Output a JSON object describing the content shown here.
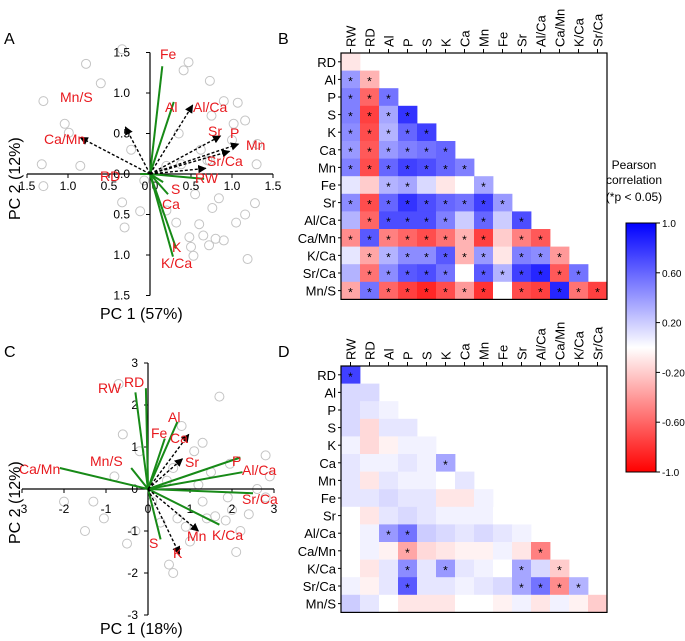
{
  "figure": {
    "panel_labels": [
      "A",
      "B",
      "C",
      "D"
    ],
    "legend": {
      "title_line1": "Pearson",
      "title_line2": "correlation",
      "title_line3": "(*p < 0.05)",
      "ticks": [
        "1.0",
        "0.60",
        "0.20",
        "-0.20",
        "-0.60",
        "-1.0"
      ],
      "tick_values": [
        1.0,
        0.6,
        0.2,
        -0.2,
        -0.6,
        -1.0
      ]
    }
  },
  "chart_data": [
    {
      "type": "scatter",
      "panel": "A",
      "subtype": "pca-biplot",
      "xlabel": "PC 1 (57%)",
      "ylabel": "PC 2 (12%)",
      "xlim": [
        -1.5,
        1.5
      ],
      "ylim": [
        -1.5,
        1.5
      ],
      "xticks": [
        "1.5",
        "1.0",
        "0.5",
        "0.0",
        "0.5",
        "1.0",
        "1.5"
      ],
      "xtick_values": [
        -1.5,
        -1.0,
        -0.5,
        0.0,
        0.5,
        1.0,
        1.5
      ],
      "yticks": [
        "1.5",
        "1.0",
        "0.5",
        "0.0",
        "0.5",
        "1.0",
        "1.5"
      ],
      "ytick_values": [
        1.5,
        1.0,
        0.5,
        0.0,
        -0.5,
        -1.0,
        -1.5
      ],
      "solid_loadings": [
        {
          "name": "Fe",
          "x": 0.15,
          "y": 1.33
        },
        {
          "name": "Al",
          "x": 0.29,
          "y": 0.89
        },
        {
          "name": "RD",
          "x": -0.12,
          "y": 0.0
        },
        {
          "name": "S",
          "x": 0.16,
          "y": -0.1
        },
        {
          "name": "Ca",
          "x": 0.22,
          "y": -0.25
        },
        {
          "name": "RW",
          "x": 0.66,
          "y": -0.06
        },
        {
          "name": "K",
          "x": 0.32,
          "y": -0.92
        },
        {
          "name": "K/Ca",
          "x": 0.28,
          "y": -1.02
        }
      ],
      "dashed_loadings": [
        {
          "name": "Mn/S",
          "x": -0.3,
          "y": 0.58
        },
        {
          "name": "Ca/Mn",
          "x": -0.85,
          "y": 0.45
        },
        {
          "name": "Al/Ca",
          "x": 0.52,
          "y": 0.85
        },
        {
          "name": "Sr",
          "x": 0.86,
          "y": 0.47
        },
        {
          "name": "P",
          "x": 1.08,
          "y": 0.37
        },
        {
          "name": "Mn",
          "x": 0.97,
          "y": 0.28
        },
        {
          "name": "Sr/Ca",
          "x": 0.68,
          "y": 0.07
        }
      ],
      "label_texts": [
        "Fe",
        "Al",
        "Al/Ca",
        "Mn/S",
        "Sr",
        "P",
        "Mn",
        "Ca/Mn",
        "Sr/Ca",
        "RD",
        "S",
        "RW",
        "Ca",
        "K",
        "K/Ca"
      ],
      "scores": [
        [
          -1.3,
          0.9
        ],
        [
          -1.32,
          0.12
        ],
        [
          -1.3,
          -0.15
        ],
        [
          -1.04,
          0.62
        ],
        [
          -0.99,
          0.51
        ],
        [
          -0.78,
          1.36
        ],
        [
          -0.6,
          1.12
        ],
        [
          -0.34,
          -0.35
        ],
        [
          -0.34,
          1.54
        ],
        [
          -0.23,
          0.3
        ],
        [
          -0.12,
          -0.46
        ],
        [
          -0.31,
          -0.66
        ],
        [
          0.41,
          1.28
        ],
        [
          0.47,
          1.38
        ],
        [
          0.48,
          -0.78
        ],
        [
          0.5,
          -0.9
        ],
        [
          0.53,
          -1.01
        ],
        [
          0.2,
          -0.45
        ],
        [
          0.32,
          -0.6
        ],
        [
          0.6,
          -0.62
        ],
        [
          0.65,
          -0.76
        ],
        [
          0.72,
          -0.88
        ],
        [
          0.7,
          0.17
        ],
        [
          0.73,
          0.16
        ],
        [
          0.73,
          1.15
        ],
        [
          0.75,
          0.72
        ],
        [
          0.84,
          -0.3
        ],
        [
          0.76,
          -0.42
        ],
        [
          0.8,
          -0.8
        ],
        [
          0.9,
          -0.82
        ],
        [
          1.0,
          0.42
        ],
        [
          1.02,
          0.62
        ],
        [
          1.07,
          0.88
        ],
        [
          1.16,
          0.66
        ],
        [
          1.19,
          -1.05
        ],
        [
          1.31,
          0.37
        ],
        [
          1.3,
          0.12
        ],
        [
          1.28,
          -0.36
        ],
        [
          1.16,
          -0.5
        ],
        [
          -0.85,
          0.1
        ],
        [
          0.62,
          0.3
        ],
        [
          0.9,
          0.9
        ],
        [
          0.35,
          0.5
        ],
        [
          1.05,
          -0.6
        ],
        [
          -0.07,
          -0.08
        ],
        [
          0.2,
          0.1
        ],
        [
          0.55,
          -0.25
        ],
        [
          0.38,
          0.12
        ]
      ]
    },
    {
      "type": "heatmap",
      "panel": "B",
      "legend_title": "Pearson correlation (*p < 0.05)",
      "columns": [
        "RW",
        "RD",
        "Al",
        "P",
        "S",
        "K",
        "Ca",
        "Mn",
        "Fe",
        "Sr",
        "Al/Ca",
        "Ca/Mn",
        "K/Ca",
        "Sr/Ca"
      ],
      "rows": [
        "RD",
        "Al",
        "P",
        "S",
        "K",
        "Ca",
        "Mn",
        "Fe",
        "Sr",
        "Al/Ca",
        "Ca/Mn",
        "K/Ca",
        "Sr/Ca",
        "Mn/S"
      ],
      "values": [
        [
          -0.1
        ],
        [
          0.4,
          -0.3
        ],
        [
          0.5,
          -0.6,
          0.55
        ],
        [
          0.5,
          -0.75,
          0.35,
          0.8
        ],
        [
          0.45,
          -0.7,
          0.3,
          0.6,
          0.75
        ],
        [
          0.4,
          -0.65,
          0.4,
          0.5,
          0.55,
          0.6
        ],
        [
          0.5,
          -0.7,
          0.6,
          0.75,
          0.7,
          0.6,
          0.5
        ],
        [
          0.1,
          -0.2,
          0.3,
          0.35,
          0.15,
          -0.1,
          0.0,
          0.35
        ],
        [
          0.45,
          -0.7,
          0.6,
          0.8,
          0.7,
          0.6,
          0.55,
          0.75,
          0.4
        ],
        [
          0.3,
          -0.6,
          0.7,
          0.7,
          0.7,
          0.5,
          0.2,
          0.6,
          0.2,
          0.7
        ],
        [
          -0.45,
          0.65,
          -0.5,
          -0.6,
          -0.7,
          -0.55,
          -0.3,
          -0.75,
          -0.2,
          -0.5,
          -0.65
        ],
        [
          0.1,
          -0.35,
          0.3,
          0.45,
          0.45,
          0.65,
          -0.3,
          0.4,
          -0.1,
          0.5,
          0.45,
          -0.4
        ],
        [
          0.3,
          -0.55,
          0.45,
          0.65,
          0.7,
          0.55,
          0.0,
          0.65,
          0.3,
          0.75,
          0.85,
          -0.65,
          0.55
        ],
        [
          -0.35,
          0.55,
          -0.6,
          -0.75,
          -0.85,
          -0.7,
          -0.4,
          -0.8,
          0.0,
          -0.7,
          -0.75,
          0.85,
          -0.55,
          -0.75
        ]
      ],
      "significant": [
        [
          false
        ],
        [
          true,
          true
        ],
        [
          true,
          true,
          true
        ],
        [
          true,
          true,
          true,
          true
        ],
        [
          true,
          true,
          true,
          true,
          true
        ],
        [
          true,
          true,
          true,
          true,
          true,
          true
        ],
        [
          true,
          true,
          true,
          true,
          true,
          true,
          true
        ],
        [
          false,
          false,
          true,
          true,
          false,
          false,
          false,
          true
        ],
        [
          true,
          true,
          true,
          true,
          true,
          true,
          true,
          true,
          true
        ],
        [
          false,
          true,
          true,
          true,
          true,
          true,
          false,
          true,
          false,
          true
        ],
        [
          true,
          true,
          true,
          true,
          true,
          true,
          true,
          true,
          false,
          true,
          true
        ],
        [
          false,
          true,
          true,
          true,
          true,
          true,
          true,
          true,
          false,
          true,
          true,
          true
        ],
        [
          false,
          true,
          true,
          true,
          true,
          true,
          false,
          true,
          true,
          true,
          true,
          true,
          true
        ],
        [
          true,
          true,
          true,
          true,
          true,
          true,
          true,
          true,
          false,
          true,
          true,
          true,
          true,
          true
        ]
      ]
    },
    {
      "type": "scatter",
      "panel": "C",
      "subtype": "pca-biplot",
      "xlabel": "PC 1 (18%)",
      "ylabel": "PC 2 (12%)",
      "xlim": [
        -3,
        3
      ],
      "ylim": [
        -3,
        3
      ],
      "xticks": [
        "-3",
        "-2",
        "-1",
        "0",
        "1",
        "2",
        "3"
      ],
      "xtick_values": [
        -3,
        -2,
        -1,
        0,
        1,
        2,
        3
      ],
      "yticks": [
        "3",
        "2",
        "1",
        "0",
        "-1",
        "-2",
        "-3"
      ],
      "ytick_values": [
        3,
        2,
        1,
        0,
        -1,
        -2,
        -3
      ],
      "solid_loadings": [
        {
          "name": "RW",
          "x": -0.3,
          "y": 2.3
        },
        {
          "name": "RD",
          "x": -0.05,
          "y": 2.4
        },
        {
          "name": "Al",
          "x": 0.7,
          "y": 1.6
        },
        {
          "name": "Fe",
          "x": 0.4,
          "y": 1.2
        },
        {
          "name": "Ca/Mn",
          "x": -2.1,
          "y": 0.5
        },
        {
          "name": "Mn/S",
          "x": -0.4,
          "y": 0.5
        },
        {
          "name": "P",
          "x": 2.2,
          "y": 0.75
        },
        {
          "name": "Al/Ca",
          "x": 2.25,
          "y": 0.4
        },
        {
          "name": "Sr/Ca",
          "x": 2.5,
          "y": -0.1
        },
        {
          "name": "K/Ca",
          "x": 1.7,
          "y": -0.85
        },
        {
          "name": "S",
          "x": 0.3,
          "y": -1.2
        }
      ],
      "dashed_loadings": [
        {
          "name": "Ca",
          "x": 0.97,
          "y": 1.3
        },
        {
          "name": "Sr",
          "x": 0.82,
          "y": 0.72
        },
        {
          "name": "Mn",
          "x": 1.2,
          "y": -1.0
        },
        {
          "name": "K",
          "x": 0.75,
          "y": -1.55
        }
      ],
      "label_texts": [
        "RW",
        "RD",
        "Al",
        "Fe",
        "Ca",
        "Ca/Mn",
        "Mn/S",
        "Sr",
        "P",
        "Al/Ca",
        "Sr/Ca",
        "Mn",
        "K/Ca",
        "S",
        "K"
      ],
      "scores": [
        [
          -2.0,
          -0.3
        ],
        [
          -1.5,
          -1.0
        ],
        [
          -1.3,
          -0.3
        ],
        [
          -1.05,
          -0.7
        ],
        [
          -0.7,
          2.5
        ],
        [
          -0.6,
          1.3
        ],
        [
          -0.5,
          -1.3
        ],
        [
          -0.3,
          -1.0
        ],
        [
          0.1,
          -0.3
        ],
        [
          0.3,
          -0.8
        ],
        [
          0.6,
          -2.0
        ],
        [
          0.5,
          -1.8
        ],
        [
          0.45,
          0.2
        ],
        [
          0.7,
          -0.7
        ],
        [
          0.9,
          -0.9
        ],
        [
          1.0,
          -1.25
        ],
        [
          1.3,
          -0.3
        ],
        [
          1.4,
          -0.7
        ],
        [
          1.6,
          -0.65
        ],
        [
          1.85,
          -0.75
        ],
        [
          1.9,
          -0.2
        ],
        [
          1.95,
          0.6
        ],
        [
          2.0,
          -0.5
        ],
        [
          2.1,
          -1.5
        ],
        [
          2.2,
          -1.0
        ],
        [
          2.6,
          0.0
        ],
        [
          2.8,
          0.8
        ],
        [
          2.9,
          0.3
        ],
        [
          2.8,
          -0.2
        ],
        [
          1.1,
          0.9
        ],
        [
          1.3,
          1.1
        ],
        [
          1.7,
          2.2
        ],
        [
          0.8,
          1.5
        ],
        [
          1.5,
          0.4
        ],
        [
          -0.2,
          0.9
        ],
        [
          1.2,
          0.1
        ],
        [
          0.6,
          0.5
        ],
        [
          -0.8,
          0.3
        ],
        [
          2.4,
          -0.6
        ]
      ]
    },
    {
      "type": "heatmap",
      "panel": "D",
      "legend_title": "Pearson correlation (*p < 0.05)",
      "columns": [
        "RW",
        "RD",
        "Al",
        "P",
        "S",
        "K",
        "Ca",
        "Mn",
        "Fe",
        "Sr",
        "Al/Ca",
        "Ca/Mn",
        "K/Ca",
        "Sr/Ca"
      ],
      "rows": [
        "RD",
        "Al",
        "P",
        "S",
        "K",
        "Ca",
        "Mn",
        "Fe",
        "Sr",
        "Al/Ca",
        "Ca/Mn",
        "K/Ca",
        "Sr/Ca",
        "Mn/S"
      ],
      "values": [
        [
          0.75
        ],
        [
          0.15,
          0.15
        ],
        [
          0.15,
          0.1,
          0.05
        ],
        [
          0.15,
          -0.15,
          0.1,
          0.1
        ],
        [
          0.05,
          -0.15,
          -0.05,
          0.05,
          0.05
        ],
        [
          0.1,
          0.05,
          0.05,
          0.1,
          0.05,
          0.35
        ],
        [
          0.1,
          -0.1,
          0.1,
          0.05,
          0.05,
          0.0,
          0.1
        ],
        [
          0.1,
          0.1,
          0.15,
          0.1,
          0.1,
          -0.1,
          -0.1,
          0.05
        ],
        [
          0.0,
          -0.1,
          0.1,
          0.15,
          0.1,
          0.05,
          0.05,
          0.05,
          0.0
        ],
        [
          0.0,
          0.05,
          0.4,
          0.55,
          0.2,
          0.15,
          0.1,
          0.15,
          0.1,
          0.05
        ],
        [
          0.0,
          0.05,
          -0.05,
          -0.35,
          -0.15,
          -0.1,
          -0.05,
          -0.05,
          0.05,
          -0.1,
          -0.5
        ],
        [
          0.0,
          -0.1,
          0.1,
          0.45,
          0.1,
          0.4,
          0.1,
          0.05,
          0.0,
          0.35,
          0.15,
          -0.2
        ],
        [
          0.05,
          -0.05,
          0.1,
          0.65,
          0.1,
          0.1,
          0.05,
          0.1,
          0.15,
          0.35,
          0.55,
          -0.45,
          0.3
        ],
        [
          0.2,
          0.1,
          0.0,
          -0.1,
          -0.1,
          -0.1,
          0.0,
          0.0,
          -0.05,
          0.05,
          -0.1,
          0.05,
          -0.05,
          -0.2
        ]
      ],
      "significant": [
        [
          true
        ],
        [
          false,
          false
        ],
        [
          false,
          false,
          false
        ],
        [
          false,
          false,
          false,
          false
        ],
        [
          false,
          false,
          false,
          false,
          false
        ],
        [
          false,
          false,
          false,
          false,
          false,
          true
        ],
        [
          false,
          false,
          false,
          false,
          false,
          false,
          false
        ],
        [
          false,
          false,
          false,
          false,
          false,
          false,
          false,
          false
        ],
        [
          false,
          false,
          false,
          false,
          false,
          false,
          false,
          false,
          false
        ],
        [
          false,
          false,
          true,
          true,
          false,
          false,
          false,
          false,
          false,
          false
        ],
        [
          false,
          false,
          false,
          true,
          false,
          false,
          false,
          false,
          false,
          false,
          true
        ],
        [
          false,
          false,
          false,
          true,
          false,
          true,
          false,
          false,
          false,
          true,
          false,
          true
        ],
        [
          false,
          false,
          false,
          true,
          false,
          false,
          false,
          false,
          false,
          true,
          true,
          true,
          true
        ],
        [
          false,
          false,
          false,
          false,
          false,
          false,
          false,
          false,
          false,
          false,
          false,
          false,
          false,
          false
        ]
      ]
    }
  ]
}
